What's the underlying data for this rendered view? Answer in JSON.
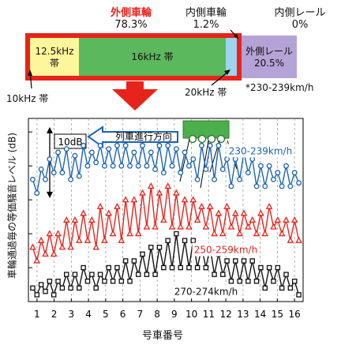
{
  "share": {
    "outer_wheel": {
      "name": "外側車輪",
      "pct": "78.3%"
    },
    "inner_wheel": {
      "name": "内側車輪",
      "pct": "1.2%"
    },
    "inner_rail": {
      "name": "内側レール",
      "pct": "0%"
    },
    "segments": {
      "s12_5": {
        "line1": "12.5kHz",
        "line2": "帯"
      },
      "s16": "16kHz 帯",
      "outer_rail": {
        "line1": "外側レール",
        "line2": "20.5%"
      }
    },
    "label_10k": "10kHz 帯",
    "label_20k": "20kHz 帯",
    "speed_note": "*230-239km/h",
    "colors": {
      "outer": "#e8231b",
      "band_12_5": "#fff59a",
      "band_16": "#5cb85c",
      "band_20": "#9fd4ee",
      "outer_rail": "#b5a2d6"
    }
  },
  "chart_data": {
    "type": "line",
    "ylabel": "車輪通過毎の等価騒音レベル (dB)",
    "xlabel": "号車番号",
    "scale_bar_label": "10dB",
    "direction_label": "列車進行方向",
    "x_ticks": [
      "1",
      "2",
      "3",
      "4",
      "5",
      "6",
      "7",
      "8",
      "9",
      "10",
      "11",
      "12",
      "13",
      "14",
      "15",
      "16"
    ],
    "xlim": [
      0.5,
      16.5
    ],
    "ylim": [
      0,
      27
    ],
    "grid": "vertical dashed",
    "series": [
      {
        "name": "230-239km/h",
        "color": "#1a64b0",
        "marker": "circle",
        "values": [
          18,
          16,
          19.5,
          18,
          21,
          19,
          22,
          19,
          22.5,
          18,
          21.5,
          18.5,
          23,
          20,
          22,
          20.5,
          23,
          20,
          22.5,
          20,
          23,
          20,
          23,
          20,
          22,
          20,
          23,
          20,
          22,
          19.5,
          23,
          19,
          23,
          20,
          22.5,
          19,
          22,
          20,
          21,
          18,
          23,
          19.5,
          23,
          18,
          23,
          19.5,
          21,
          17,
          21,
          18,
          22,
          19,
          21,
          17,
          20,
          17,
          20,
          18,
          19,
          17,
          20,
          17,
          19,
          17.5
        ]
      },
      {
        "name": "250-259km/h",
        "color": "#e8231b",
        "marker": "triangle",
        "values": [
          8,
          6,
          9,
          7,
          10,
          7,
          10,
          8,
          12,
          8,
          12,
          9,
          13,
          9,
          12,
          8,
          14,
          9,
          13,
          10,
          14,
          9,
          15,
          10,
          15,
          10,
          16,
          11,
          17,
          11,
          16,
          12,
          17,
          11,
          16,
          11,
          15,
          11,
          15,
          12,
          14,
          11,
          14,
          10,
          13,
          10,
          14,
          11,
          13,
          10,
          13,
          11,
          12,
          10,
          13,
          10,
          14,
          11,
          12,
          10,
          12,
          9,
          12,
          9
        ]
      },
      {
        "name": "270-274km/h",
        "color": "#111111",
        "marker": "square",
        "values": [
          2,
          1,
          2.5,
          1.5,
          3,
          1,
          3,
          2,
          4,
          2,
          4,
          2,
          5,
          3,
          4,
          2,
          4,
          3,
          5,
          3,
          5,
          3,
          6,
          3,
          6,
          4,
          7,
          4,
          8,
          4,
          8,
          5,
          9,
          5,
          10,
          5,
          9,
          5,
          9,
          5,
          8,
          5,
          8,
          4,
          7,
          4,
          6,
          3,
          6,
          3,
          6,
          3,
          6,
          3,
          5,
          2,
          5,
          3,
          5,
          2,
          4,
          2,
          3,
          1
        ]
      }
    ]
  }
}
